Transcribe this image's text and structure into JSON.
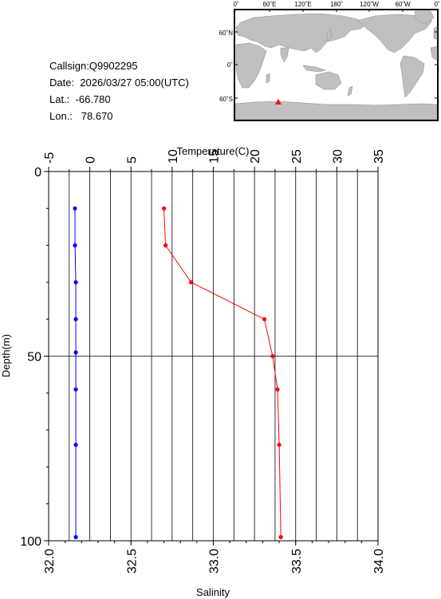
{
  "station": {
    "callsign_label": "Callsign:",
    "callsign": "Q9902295",
    "date_label": "Date:",
    "date": "2026/03/27 05:00(UTC)",
    "lat_label": "Lat.:",
    "lat": "-66.780",
    "lon_label": "Lon.:",
    "lon": "78.670"
  },
  "map": {
    "top_ticks": [
      "0˚",
      "60˚E",
      "120˚E",
      "180˚",
      "120˚W",
      "60˚W",
      "0˚"
    ],
    "left_ticks": [
      "60˚N",
      "0˚",
      "60˚S"
    ],
    "land_color": "#c0c0c0",
    "ocean_color": "#ffffff",
    "marker_color": "#ff0000"
  },
  "chart_data": {
    "type": "line",
    "inverted_y": true,
    "ylabel": "Depth(m)",
    "ylim": [
      0,
      100
    ],
    "yticks": [
      "0",
      "50",
      "100"
    ],
    "temperature": {
      "xlabel": "Temperature(C)",
      "xlim": [
        -5,
        35
      ],
      "xticks": [
        "-5",
        "0",
        "5",
        "10",
        "15",
        "20",
        "25",
        "30",
        "35"
      ],
      "color": "#ff0000",
      "depth": [
        10,
        20,
        30,
        40,
        50,
        59,
        74,
        99
      ],
      "values": [
        9.0,
        9.2,
        12.3,
        21.2,
        22.2,
        22.8,
        23.0,
        23.2
      ]
    },
    "salinity": {
      "xlabel": "Salinity",
      "xlim": [
        32.0,
        34.0
      ],
      "xticks": [
        "32.0",
        "32.5",
        "33.0",
        "33.5",
        "34.0"
      ],
      "color": "#0000ff",
      "depth": [
        10,
        20,
        30,
        40,
        49,
        59,
        74,
        99
      ],
      "values": [
        32.16,
        32.16,
        32.165,
        32.165,
        32.165,
        32.165,
        32.165,
        32.165
      ]
    },
    "grid": true
  }
}
